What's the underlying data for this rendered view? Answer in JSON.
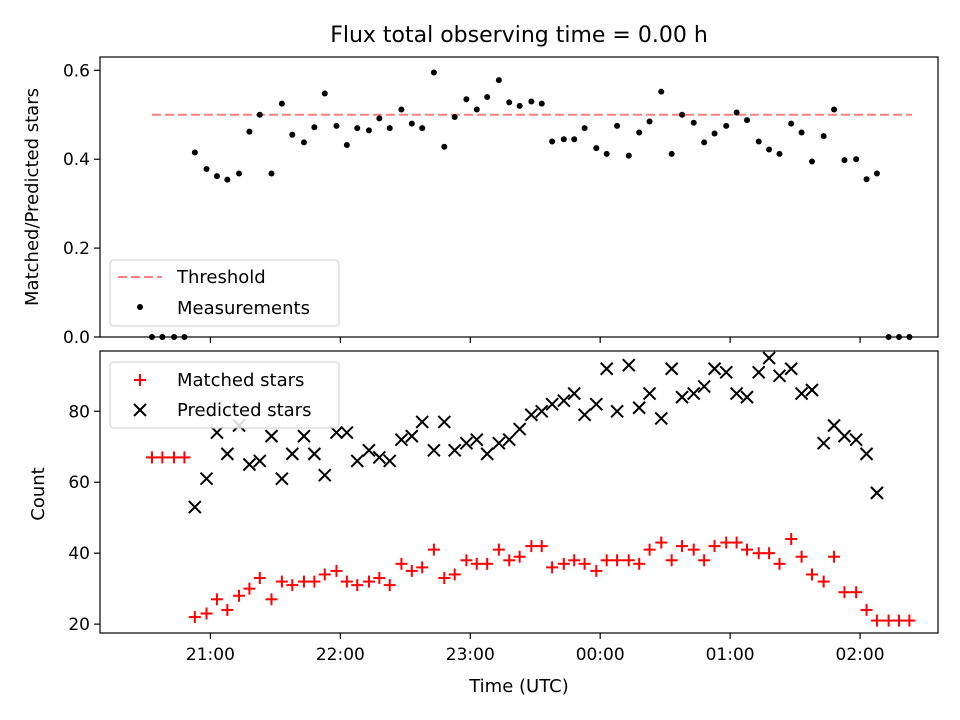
{
  "title": "Flux total observing time = 0.00 h",
  "xlabel": "Time (UTC)",
  "x_ticks": [
    "21:00",
    "22:00",
    "23:00",
    "00:00",
    "01:00",
    "02:00"
  ],
  "top_ylabel": "Matched/Predicted stars",
  "bottom_ylabel": "Count",
  "top_legend": {
    "threshold": "Threshold",
    "measurements": "Measurements"
  },
  "bottom_legend": {
    "matched": "Matched stars",
    "predicted": "Predicted stars"
  },
  "colors": {
    "threshold": "#ff7f7f",
    "measurements": "#000000",
    "matched": "#ff0000",
    "predicted": "#000000"
  },
  "chart_data": [
    {
      "type": "scatter",
      "title": "Flux total observing time = 0.00 h",
      "xlabel": "",
      "ylabel": "Matched/Predicted stars",
      "x_unit": "hours since 20:00 UTC",
      "ylim": [
        0,
        0.63
      ],
      "yticks": [
        0.0,
        0.2,
        0.4,
        0.6
      ],
      "legend_placement": "lower-left",
      "threshold": {
        "name": "Threshold",
        "value": 0.5,
        "x_range": [
          20.55,
          26.4
        ]
      },
      "series": [
        {
          "name": "Measurements",
          "x": [
            20.55,
            20.63,
            20.72,
            20.8,
            20.88,
            20.97,
            21.05,
            21.13,
            21.22,
            21.3,
            21.38,
            21.47,
            21.55,
            21.63,
            21.72,
            21.8,
            21.88,
            21.97,
            22.05,
            22.13,
            22.22,
            22.3,
            22.38,
            22.47,
            22.55,
            22.63,
            22.72,
            22.8,
            22.88,
            22.97,
            23.05,
            23.13,
            23.22,
            23.3,
            23.38,
            23.47,
            23.55,
            23.63,
            23.72,
            23.8,
            23.88,
            23.97,
            24.05,
            24.13,
            24.22,
            24.3,
            24.38,
            24.47,
            24.55,
            24.63,
            24.72,
            24.8,
            24.88,
            24.97,
            25.05,
            25.13,
            25.22,
            25.3,
            25.38,
            25.47,
            25.55,
            25.63,
            25.72,
            25.8,
            25.88,
            25.97,
            26.05,
            26.13,
            26.22,
            26.3,
            26.38
          ],
          "y": [
            0.0,
            0.0,
            0.0,
            0.0,
            0.415,
            0.378,
            0.362,
            0.354,
            0.368,
            0.462,
            0.5,
            0.368,
            0.525,
            0.455,
            0.438,
            0.472,
            0.548,
            0.475,
            0.432,
            0.47,
            0.465,
            0.492,
            0.47,
            0.512,
            0.48,
            0.47,
            0.595,
            0.428,
            0.495,
            0.535,
            0.512,
            0.54,
            0.578,
            0.528,
            0.52,
            0.53,
            0.525,
            0.44,
            0.445,
            0.445,
            0.47,
            0.425,
            0.412,
            0.475,
            0.408,
            0.46,
            0.485,
            0.552,
            0.412,
            0.5,
            0.482,
            0.438,
            0.458,
            0.475,
            0.505,
            0.488,
            0.44,
            0.422,
            0.412,
            0.48,
            0.46,
            0.395,
            0.452,
            0.512,
            0.398,
            0.4,
            0.355,
            0.368,
            0.0,
            0.0,
            0.0
          ]
        }
      ]
    },
    {
      "type": "scatter",
      "title": "",
      "xlabel": "Time (UTC)",
      "ylabel": "Count",
      "x_unit": "hours since 20:00 UTC",
      "xlim": [
        20.15,
        26.6
      ],
      "ylim": [
        17.5,
        97
      ],
      "yticks": [
        20,
        40,
        60,
        80
      ],
      "legend_placement": "upper-left",
      "series": [
        {
          "name": "Matched stars",
          "marker": "plus",
          "x": [
            20.55,
            20.63,
            20.72,
            20.8,
            20.88,
            20.97,
            21.05,
            21.13,
            21.22,
            21.3,
            21.38,
            21.47,
            21.55,
            21.63,
            21.72,
            21.8,
            21.88,
            21.97,
            22.05,
            22.13,
            22.22,
            22.3,
            22.38,
            22.47,
            22.55,
            22.63,
            22.72,
            22.8,
            22.88,
            22.97,
            23.05,
            23.13,
            23.22,
            23.3,
            23.38,
            23.47,
            23.55,
            23.63,
            23.72,
            23.8,
            23.88,
            23.97,
            24.05,
            24.13,
            24.22,
            24.3,
            24.38,
            24.47,
            24.55,
            24.63,
            24.72,
            24.8,
            24.88,
            24.97,
            25.05,
            25.13,
            25.22,
            25.3,
            25.38,
            25.47,
            25.55,
            25.63,
            25.72,
            25.8,
            25.88,
            25.97,
            26.05,
            26.13,
            26.22,
            26.3,
            26.38
          ],
          "y": [
            67,
            67,
            67,
            67,
            22,
            23,
            27,
            24,
            28,
            30,
            33,
            27,
            32,
            31,
            32,
            32,
            34,
            35,
            32,
            31,
            32,
            33,
            31,
            37,
            35,
            36,
            41,
            33,
            34,
            38,
            37,
            37,
            41,
            38,
            39,
            42,
            42,
            36,
            37,
            38,
            37,
            35,
            38,
            38,
            38,
            37,
            41,
            43,
            38,
            42,
            41,
            38,
            42,
            43,
            43,
            41,
            40,
            40,
            37,
            44,
            39,
            34,
            32,
            39,
            29,
            29,
            24,
            21,
            21,
            21,
            21
          ]
        },
        {
          "name": "Predicted stars",
          "marker": "x",
          "x": [
            20.88,
            20.97,
            21.05,
            21.13,
            21.22,
            21.3,
            21.38,
            21.47,
            21.55,
            21.63,
            21.72,
            21.8,
            21.88,
            21.97,
            22.05,
            22.13,
            22.22,
            22.3,
            22.38,
            22.47,
            22.55,
            22.63,
            22.72,
            22.8,
            22.88,
            22.97,
            23.05,
            23.13,
            23.22,
            23.3,
            23.38,
            23.47,
            23.55,
            23.63,
            23.72,
            23.8,
            23.88,
            23.97,
            24.05,
            24.13,
            24.22,
            24.3,
            24.38,
            24.47,
            24.55,
            24.63,
            24.72,
            24.8,
            24.88,
            24.97,
            25.05,
            25.13,
            25.22,
            25.3,
            25.38,
            25.47,
            25.55,
            25.63,
            25.72,
            25.8,
            25.88,
            25.97,
            26.05,
            26.13
          ],
          "y": [
            53,
            61,
            74,
            68,
            76,
            65,
            66,
            73,
            61,
            68,
            73,
            68,
            62,
            74,
            74,
            66,
            69,
            67,
            66,
            72,
            73,
            77,
            69,
            77,
            69,
            71,
            72,
            68,
            71,
            72,
            75,
            79,
            80,
            82,
            83,
            85,
            79,
            82,
            92,
            80,
            93,
            81,
            85,
            78,
            92,
            84,
            85,
            87,
            92,
            91,
            85,
            84,
            91,
            95,
            90,
            92,
            85,
            86,
            71,
            76,
            73,
            72,
            68,
            57
          ]
        }
      ]
    }
  ]
}
